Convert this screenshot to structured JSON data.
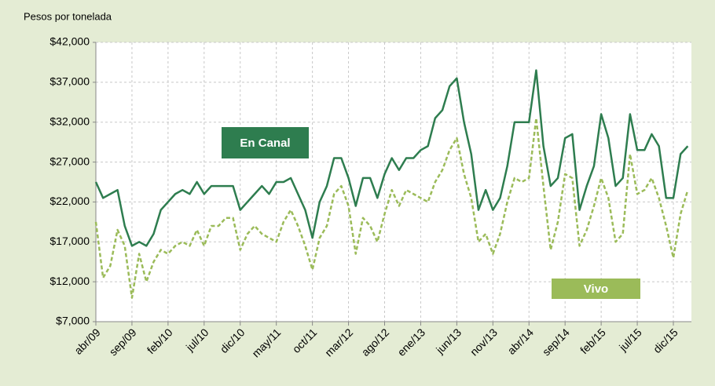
{
  "chart_data": {
    "type": "line",
    "ylabel": "Pesos por tonelada",
    "categories": [
      "abr/09",
      null,
      null,
      null,
      null,
      "sep/09",
      null,
      null,
      null,
      null,
      "feb/10",
      null,
      null,
      null,
      null,
      "jul/10",
      null,
      null,
      null,
      null,
      "dic/10",
      null,
      null,
      null,
      null,
      "may/11",
      null,
      null,
      null,
      null,
      "oct/11",
      null,
      null,
      null,
      null,
      "mar/12",
      null,
      null,
      null,
      null,
      "ago/12",
      null,
      null,
      null,
      null,
      "ene/13",
      null,
      null,
      null,
      null,
      "jun/13",
      null,
      null,
      null,
      null,
      "nov/13",
      null,
      null,
      null,
      null,
      "abr/14",
      null,
      null,
      null,
      null,
      "sep/14",
      null,
      null,
      null,
      null,
      "feb/15",
      null,
      null,
      null,
      null,
      "jul/15",
      null,
      null,
      null,
      null,
      "dic/15",
      null,
      null
    ],
    "series": [
      {
        "name": "En Canal",
        "color": "#2e7d4f",
        "dash": false,
        "values": [
          24500,
          22500,
          23000,
          23500,
          19000,
          16500,
          17000,
          16500,
          18000,
          21000,
          22000,
          23000,
          23500,
          23000,
          24500,
          23000,
          24000,
          24000,
          24000,
          24000,
          21000,
          22000,
          23000,
          24000,
          23000,
          24500,
          24500,
          25000,
          23000,
          21000,
          17500,
          22000,
          24000,
          27500,
          27500,
          25000,
          21500,
          25000,
          25000,
          22500,
          25500,
          27500,
          26000,
          27500,
          27500,
          28500,
          29000,
          32500,
          33500,
          36500,
          37500,
          32000,
          28000,
          21000,
          23500,
          21000,
          22500,
          26500,
          32000,
          32000,
          32000,
          38500,
          29000,
          24000,
          25000,
          30000,
          30500,
          21000,
          24000,
          26500,
          33000,
          30000,
          24000,
          25000,
          33000,
          28500,
          28500,
          30500,
          29000,
          22500,
          22500,
          28000,
          29000
        ]
      },
      {
        "name": "Vivo",
        "color": "#9bbb59",
        "dash": true,
        "values": [
          19500,
          12500,
          14000,
          18500,
          16500,
          10000,
          15500,
          12000,
          14500,
          16000,
          15500,
          16500,
          17000,
          16500,
          18500,
          16500,
          19000,
          19000,
          20000,
          20000,
          16000,
          18000,
          19000,
          18000,
          17500,
          17000,
          19500,
          21000,
          19000,
          16500,
          13500,
          17500,
          19000,
          23000,
          24000,
          21500,
          15500,
          20000,
          19000,
          17000,
          20500,
          23500,
          21500,
          23500,
          23000,
          22500,
          22000,
          24500,
          26000,
          28500,
          30000,
          25500,
          22500,
          17000,
          18000,
          15500,
          18000,
          22000,
          25000,
          24500,
          25000,
          32500,
          24000,
          16000,
          19500,
          25500,
          25000,
          16500,
          18500,
          21500,
          25000,
          22500,
          17000,
          18000,
          28000,
          23000,
          23500,
          25000,
          22500,
          19000,
          15000,
          20500,
          23500
        ]
      }
    ],
    "ylim": [
      7000,
      42000
    ],
    "yticks": [
      {
        "value": 7000,
        "label": "$7,000"
      },
      {
        "value": 12000,
        "label": "$12,000"
      },
      {
        "value": 17000,
        "label": "$17,000"
      },
      {
        "value": 22000,
        "label": "$22,000"
      },
      {
        "value": 27000,
        "label": "$27,000"
      },
      {
        "value": 32000,
        "label": "$32,000"
      },
      {
        "value": 37000,
        "label": "$37,000"
      },
      {
        "value": 42000,
        "label": "$42,000"
      }
    ],
    "grid": true
  }
}
